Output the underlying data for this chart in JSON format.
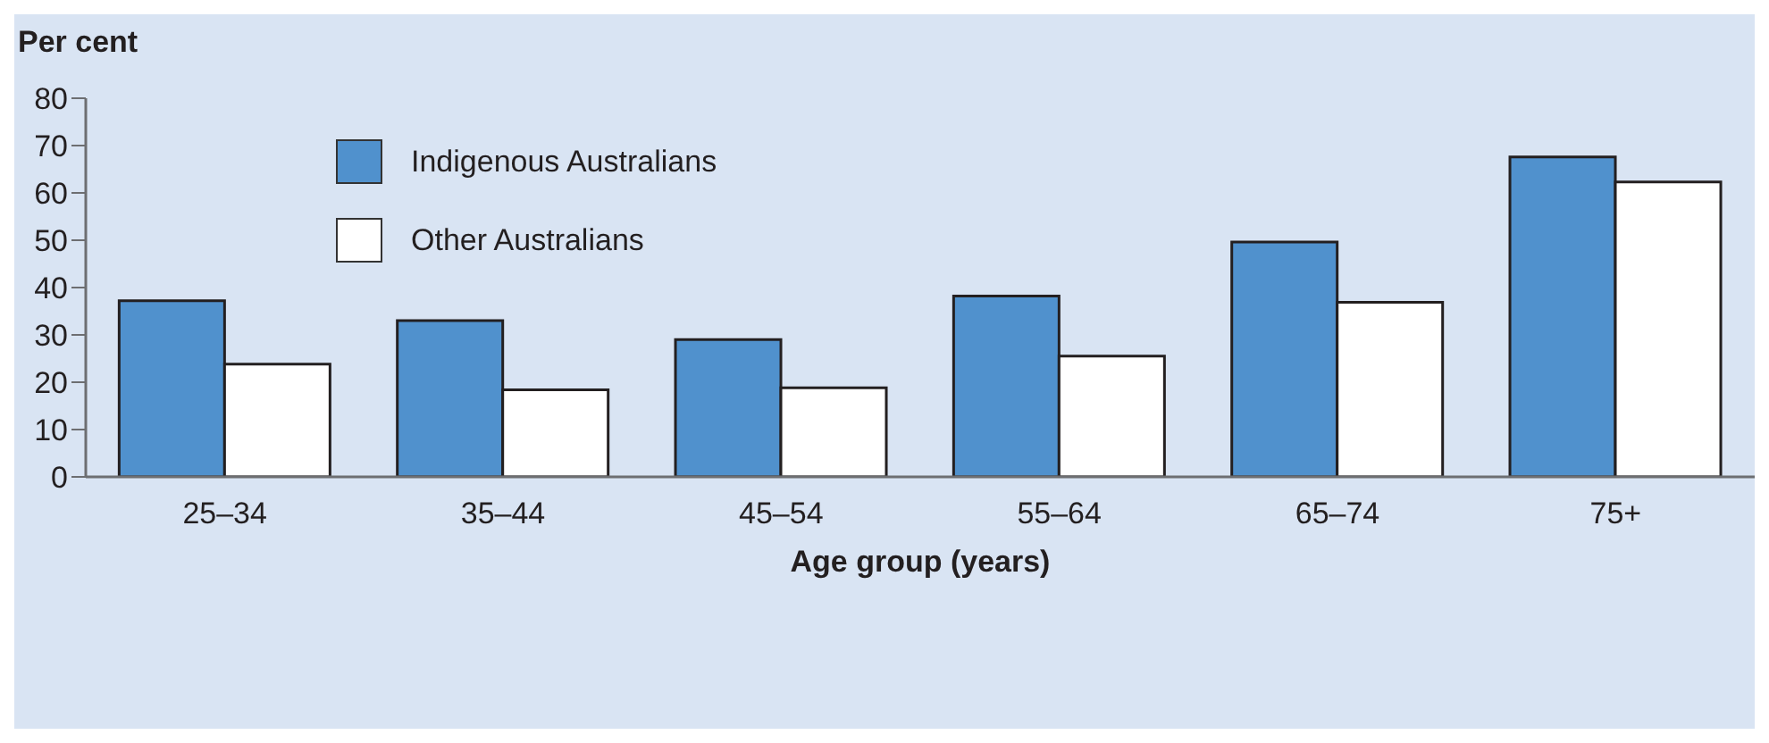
{
  "chart_data": {
    "type": "bar",
    "xlabel": "Age group (years)",
    "ylabel": "Per cent",
    "categories": [
      "25–34",
      "35–44",
      "45–54",
      "55–64",
      "65–74",
      "75+"
    ],
    "series": [
      {
        "name": "Indigenous Australians",
        "color": "#5091cd",
        "values": [
          37.2,
          33.0,
          29.0,
          38.2,
          49.6,
          67.6
        ]
      },
      {
        "name": "Other Australians",
        "color": "#ffffff",
        "values": [
          23.8,
          18.4,
          18.8,
          25.5,
          36.9,
          62.3
        ]
      }
    ],
    "ylim": [
      0,
      80
    ],
    "yticks": [
      0,
      10,
      20,
      30,
      40,
      50,
      60,
      70,
      80
    ],
    "grid": false,
    "legend": "top left"
  }
}
